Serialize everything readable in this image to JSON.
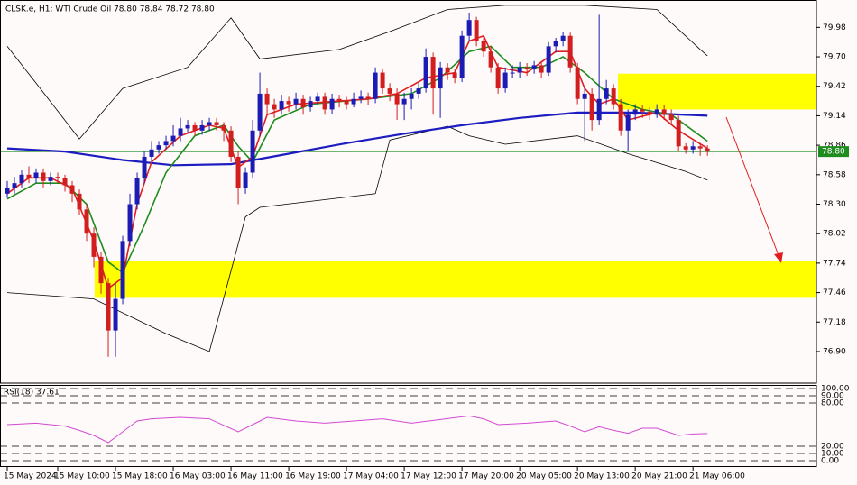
{
  "chart_data": {
    "type": "candlestick",
    "title": "CLSK.e, H1:  WTI Crude Oil  78.80 78.84 78.72 78.80",
    "candles": [
      [
        78.4,
        78.52,
        78.36,
        78.45
      ],
      [
        78.45,
        78.56,
        78.4,
        78.5
      ],
      [
        78.5,
        78.62,
        78.46,
        78.58
      ],
      [
        78.58,
        78.66,
        78.5,
        78.55
      ],
      [
        78.55,
        78.64,
        78.5,
        78.6
      ],
      [
        78.6,
        78.64,
        78.46,
        78.52
      ],
      [
        78.52,
        78.6,
        78.48,
        78.56
      ],
      [
        78.56,
        78.6,
        78.5,
        78.55
      ],
      [
        78.55,
        78.58,
        78.42,
        78.48
      ],
      [
        78.48,
        78.52,
        78.32,
        78.4
      ],
      [
        78.4,
        78.44,
        78.2,
        78.25
      ],
      [
        78.25,
        78.3,
        77.95,
        78.02
      ],
      [
        78.02,
        78.08,
        77.7,
        77.8
      ],
      [
        77.8,
        77.85,
        77.45,
        77.55
      ],
      [
        77.55,
        77.6,
        76.85,
        77.1
      ],
      [
        77.1,
        77.55,
        76.85,
        77.4
      ],
      [
        77.4,
        78.0,
        77.35,
        77.95
      ],
      [
        77.95,
        78.4,
        77.9,
        78.3
      ],
      [
        78.3,
        78.6,
        78.25,
        78.55
      ],
      [
        78.55,
        78.8,
        78.5,
        78.75
      ],
      [
        78.75,
        78.9,
        78.7,
        78.82
      ],
      [
        78.82,
        78.9,
        78.78,
        78.86
      ],
      [
        78.86,
        78.95,
        78.82,
        78.9
      ],
      [
        78.9,
        79.05,
        78.85,
        78.95
      ],
      [
        78.95,
        79.12,
        78.9,
        79.02
      ],
      [
        79.02,
        79.1,
        78.98,
        79.05
      ],
      [
        79.05,
        79.08,
        78.95,
        79.0
      ],
      [
        79.0,
        79.1,
        78.96,
        79.05
      ],
      [
        79.05,
        79.12,
        79.0,
        79.08
      ],
      [
        79.08,
        79.12,
        79.0,
        79.05
      ],
      [
        79.05,
        79.08,
        78.9,
        79.0
      ],
      [
        79.0,
        79.04,
        78.7,
        78.75
      ],
      [
        78.75,
        78.8,
        78.3,
        78.45
      ],
      [
        78.45,
        78.65,
        78.4,
        78.6
      ],
      [
        78.6,
        79.1,
        78.55,
        79.0
      ],
      [
        79.0,
        79.55,
        78.95,
        79.35
      ],
      [
        79.35,
        79.4,
        79.15,
        79.25
      ],
      [
        79.25,
        79.3,
        79.12,
        79.2
      ],
      [
        79.2,
        79.34,
        79.15,
        79.28
      ],
      [
        79.28,
        79.32,
        79.18,
        79.25
      ],
      [
        79.25,
        79.36,
        79.2,
        79.3
      ],
      [
        79.3,
        79.34,
        79.15,
        79.22
      ],
      [
        79.22,
        79.32,
        79.18,
        79.28
      ],
      [
        79.28,
        79.36,
        79.24,
        79.32
      ],
      [
        79.32,
        79.36,
        79.15,
        79.2
      ],
      [
        79.2,
        79.35,
        79.16,
        79.3
      ],
      [
        79.3,
        79.34,
        79.22,
        79.28
      ],
      [
        79.28,
        79.32,
        79.2,
        79.25
      ],
      [
        79.25,
        79.36,
        79.22,
        79.3
      ],
      [
        79.3,
        79.38,
        79.26,
        79.32
      ],
      [
        79.32,
        79.36,
        79.24,
        79.3
      ],
      [
        79.3,
        79.6,
        79.26,
        79.55
      ],
      [
        79.55,
        79.58,
        79.35,
        79.4
      ],
      [
        79.4,
        79.45,
        79.28,
        79.35
      ],
      [
        79.35,
        79.4,
        79.1,
        79.25
      ],
      [
        79.25,
        79.36,
        79.1,
        79.3
      ],
      [
        79.3,
        79.4,
        79.2,
        79.35
      ],
      [
        79.35,
        79.45,
        79.3,
        79.4
      ],
      [
        79.4,
        79.78,
        79.36,
        79.7
      ],
      [
        79.7,
        79.74,
        79.15,
        79.4
      ],
      [
        79.4,
        79.65,
        79.12,
        79.6
      ],
      [
        79.6,
        79.64,
        79.48,
        79.55
      ],
      [
        79.55,
        79.58,
        79.45,
        79.5
      ],
      [
        79.5,
        79.95,
        79.46,
        79.9
      ],
      [
        79.9,
        80.12,
        79.85,
        80.05
      ],
      [
        80.05,
        80.08,
        79.8,
        79.85
      ],
      [
        79.85,
        79.9,
        79.7,
        79.75
      ],
      [
        79.75,
        79.8,
        79.55,
        79.6
      ],
      [
        79.6,
        79.64,
        79.35,
        79.4
      ],
      [
        79.4,
        79.6,
        79.36,
        79.55
      ],
      [
        79.55,
        79.62,
        79.5,
        79.55
      ],
      [
        79.55,
        79.65,
        79.5,
        79.6
      ],
      [
        79.6,
        79.64,
        79.52,
        79.58
      ],
      [
        79.58,
        79.66,
        79.54,
        79.62
      ],
      [
        79.62,
        79.66,
        79.5,
        79.55
      ],
      [
        79.55,
        79.84,
        79.52,
        79.8
      ],
      [
        79.8,
        79.88,
        79.74,
        79.85
      ],
      [
        79.85,
        79.94,
        79.8,
        79.9
      ],
      [
        79.9,
        79.93,
        79.55,
        79.6
      ],
      [
        79.6,
        79.64,
        79.25,
        79.3
      ],
      [
        79.3,
        79.4,
        78.9,
        79.35
      ],
      [
        79.35,
        79.4,
        79.0,
        79.1
      ],
      [
        79.1,
        80.1,
        79.05,
        79.3
      ],
      [
        79.3,
        79.48,
        79.25,
        79.4
      ],
      [
        79.4,
        79.44,
        79.2,
        79.25
      ],
      [
        79.25,
        79.3,
        78.95,
        79.0
      ],
      [
        79.0,
        79.2,
        78.8,
        79.15
      ],
      [
        79.15,
        79.25,
        79.1,
        79.2
      ],
      [
        79.2,
        79.24,
        79.12,
        79.18
      ],
      [
        79.18,
        79.22,
        79.1,
        79.15
      ],
      [
        79.15,
        79.25,
        79.12,
        79.2
      ],
      [
        79.2,
        79.24,
        79.1,
        79.15
      ],
      [
        79.15,
        79.2,
        79.05,
        79.1
      ],
      [
        79.1,
        79.14,
        78.8,
        78.85
      ],
      [
        78.85,
        78.88,
        78.78,
        78.82
      ],
      [
        78.82,
        78.9,
        78.78,
        78.85
      ],
      [
        78.85,
        78.88,
        78.76,
        78.83
      ],
      [
        78.83,
        78.86,
        78.76,
        78.8
      ]
    ],
    "up_color": "#1c1cb4",
    "down_color": "#d21e1e",
    "xlim": [
      -1,
      112.1
    ],
    "xticks": [
      {
        "value": 0,
        "label": "15 May 2024"
      },
      {
        "value": 7,
        "label": "15 May 10:00"
      },
      {
        "value": 15,
        "label": "15 May 18:00"
      },
      {
        "value": 23,
        "label": "16 May 03:00"
      },
      {
        "value": 31,
        "label": "16 May 11:00"
      },
      {
        "value": 39,
        "label": "16 May 19:00"
      },
      {
        "value": 47,
        "label": "17 May 04:00"
      },
      {
        "value": 55,
        "label": "17 May 12:00"
      },
      {
        "value": 63,
        "label": "17 May 20:00"
      },
      {
        "value": 71,
        "label": "20 May 05:00"
      },
      {
        "value": 79,
        "label": "20 May 13:00"
      },
      {
        "value": 87,
        "label": "20 May 21:00"
      },
      {
        "value": 95,
        "label": "21 May 06:00"
      }
    ],
    "ylim": [
      76.6,
      80.24
    ],
    "yticks": [
      79.98,
      {
        "value": 79.7,
        "label": "79.70"
      },
      79.42,
      79.14,
      78.86,
      78.58,
      {
        "value": 78.3,
        "label": "78.30"
      },
      78.02,
      77.74,
      77.46,
      77.18,
      {
        "value": 76.9,
        "label": "76.90"
      }
    ],
    "current_price": {
      "value": 78.8,
      "label": "78.80"
    },
    "current_color": "#1e8c1e",
    "zones": [
      {
        "x_from": 84.6,
        "range": [
          79.2,
          79.54
        ],
        "color": "#ffff00"
      },
      {
        "x_from": 12.1,
        "range": [
          77.41,
          77.76
        ],
        "color": "#ffff00"
      }
    ],
    "series": [
      {
        "color": "#000000",
        "width": 0.8,
        "x": [
          0,
          4,
          10,
          16,
          25,
          31,
          35,
          46,
          53,
          61,
          69,
          80,
          90,
          96,
          97
        ],
        "values": [
          79.8,
          79.45,
          78.92,
          79.4,
          79.6,
          80.07,
          79.68,
          79.77,
          79.94,
          80.15,
          80.19,
          80.19,
          80.15,
          79.77,
          79.71
        ]
      },
      {
        "color": "#000000",
        "width": 0.8,
        "x": [
          0,
          12,
          22,
          28,
          33,
          35,
          51,
          53,
          61,
          64,
          69,
          79,
          86,
          94,
          97
        ],
        "values": [
          77.46,
          77.4,
          77.07,
          76.9,
          78.18,
          78.27,
          78.4,
          78.91,
          79.04,
          78.95,
          78.87,
          78.95,
          78.78,
          78.61,
          78.53
        ]
      },
      {
        "color": "#1c1cc0",
        "width": 2.2,
        "x": [
          0,
          8,
          16,
          23,
          31,
          39,
          47,
          55,
          63,
          71,
          79,
          87,
          97
        ],
        "values": [
          78.83,
          78.8,
          78.72,
          78.67,
          78.68,
          78.78,
          78.88,
          78.97,
          79.05,
          79.12,
          79.17,
          79.17,
          79.14
        ]
      },
      {
        "color": "#1e8c1e",
        "width": 1.6,
        "x": [
          0,
          4,
          8,
          11,
          14,
          16,
          19,
          22,
          26,
          30,
          32,
          34,
          37,
          42,
          50,
          56,
          60,
          64,
          67,
          70,
          74,
          77,
          80,
          84,
          88,
          92,
          97
        ],
        "values": [
          78.35,
          78.5,
          78.5,
          78.3,
          77.75,
          77.65,
          78.1,
          78.6,
          78.95,
          79.05,
          78.85,
          78.7,
          79.1,
          79.25,
          79.3,
          79.35,
          79.5,
          79.75,
          79.8,
          79.6,
          79.6,
          79.7,
          79.55,
          79.3,
          79.2,
          79.15,
          78.9
        ]
      },
      {
        "color": "#e01e1e",
        "width": 1.6,
        "x": [
          0,
          3,
          6,
          9,
          12,
          14,
          16,
          18,
          20,
          24,
          28,
          30,
          32,
          34,
          36,
          40,
          46,
          50,
          54,
          58,
          62,
          64,
          66,
          68,
          72,
          76,
          78,
          80,
          82,
          84,
          86,
          90,
          93,
          97
        ],
        "values": [
          78.4,
          78.55,
          78.55,
          78.45,
          77.95,
          77.5,
          77.6,
          78.3,
          78.7,
          78.95,
          79.05,
          79.02,
          78.65,
          78.75,
          79.15,
          79.25,
          79.28,
          79.3,
          79.35,
          79.5,
          79.55,
          79.85,
          79.9,
          79.6,
          79.55,
          79.75,
          79.75,
          79.4,
          79.25,
          79.3,
          79.1,
          79.17,
          79.0,
          78.83
        ]
      }
    ],
    "rsi": {
      "label": "RSI(18) 37.61",
      "color": "#d24bd2",
      "ylim": [
        0,
        100
      ],
      "yticks": [
        {
          "value": 100,
          "label": "100.00"
        },
        {
          "value": 90,
          "label": "90.00"
        },
        {
          "value": 80,
          "label": "80.00"
        },
        {
          "value": 20,
          "label": "20.00"
        },
        {
          "value": 10,
          "label": "10.00"
        },
        {
          "value": 0,
          "label": "0.00"
        }
      ],
      "x": [
        0,
        4,
        8,
        10,
        12,
        14,
        16,
        18,
        20,
        24,
        28,
        32,
        34,
        36,
        40,
        44,
        48,
        52,
        56,
        60,
        64,
        66,
        68,
        72,
        76,
        78,
        80,
        82,
        84,
        86,
        88,
        90,
        93,
        95,
        97
      ],
      "values": [
        50,
        52,
        48,
        42,
        35,
        25,
        40,
        55,
        58,
        60,
        58,
        40,
        50,
        60,
        55,
        52,
        55,
        58,
        52,
        57,
        62,
        58,
        50,
        52,
        55,
        48,
        40,
        47,
        42,
        38,
        45,
        45,
        35,
        37,
        37.61
      ]
    }
  }
}
